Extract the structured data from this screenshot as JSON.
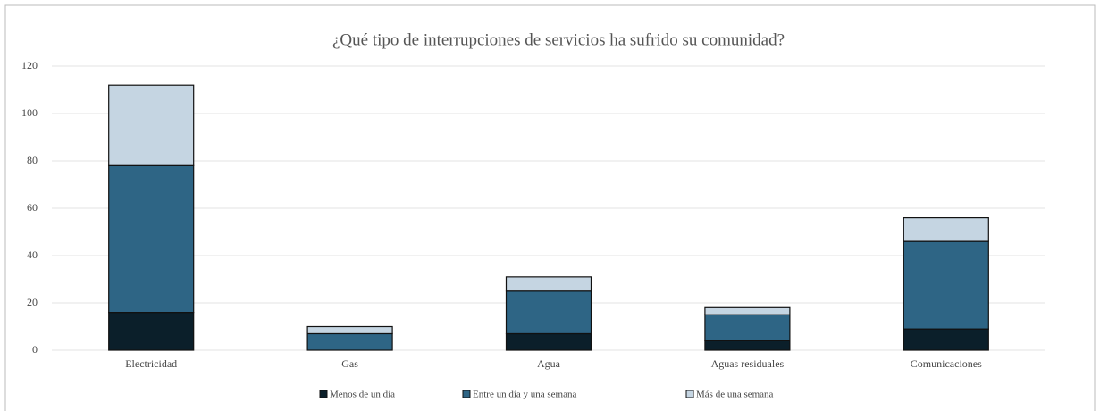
{
  "chart_data": {
    "type": "stacked_bar",
    "title": "¿Qué tipo de interrupciones  de servicios ha sufrido su comunidad?",
    "categories": [
      "Electricidad",
      "Gas",
      "Agua",
      "Aguas residuales",
      "Comunicaciones"
    ],
    "series": [
      {
        "name": "Menos de un día",
        "color": "#0b1f2a",
        "values": [
          16,
          0,
          7,
          4,
          9
        ]
      },
      {
        "name": "Entre un día y una semana",
        "color": "#2e6585",
        "values": [
          62,
          7,
          18,
          11,
          37
        ]
      },
      {
        "name": "Más de una semana",
        "color": "#c5d5e2",
        "values": [
          34,
          3,
          6,
          3,
          10
        ]
      }
    ],
    "ylim": [
      0,
      120
    ],
    "yticks": [
      0,
      20,
      40,
      60,
      80,
      100,
      120
    ],
    "grid": true,
    "legend": "bottom"
  }
}
